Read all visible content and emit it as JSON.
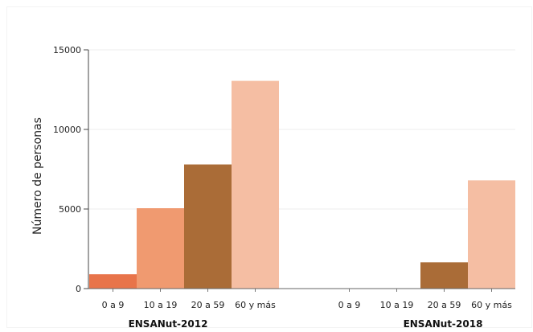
{
  "chart_data": {
    "type": "bar",
    "ylabel": "Número de personas",
    "ylim": [
      0,
      15000
    ],
    "yticks": [
      0,
      5000,
      10000,
      15000
    ],
    "grid": true,
    "groups": [
      {
        "name": "ENSANut-2012",
        "categories": [
          "0 a 9",
          "10 a 19",
          "20 a 59",
          "60 y más"
        ],
        "values": [
          900,
          5050,
          7800,
          13050
        ]
      },
      {
        "name": "ENSANut-2018",
        "categories": [
          "0 a 9",
          "10 a 19",
          "20 a 59",
          "60 y más"
        ],
        "values": [
          0,
          0,
          1650,
          6800
        ]
      }
    ],
    "colors": [
      "#e8744a",
      "#f09a70",
      "#aa6c37",
      "#f5bea3"
    ]
  }
}
